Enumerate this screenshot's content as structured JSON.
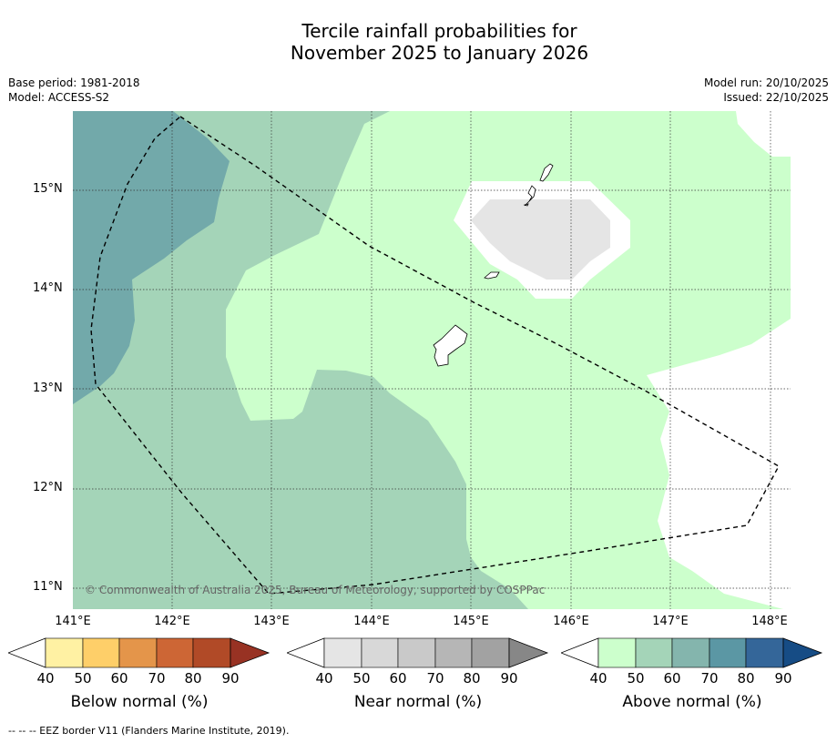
{
  "title_line1": "Tercile rainfall probabilities for",
  "title_line2": "November 2025 to January 2026",
  "meta_left": {
    "base_period": "Base period: 1981-2018",
    "model": "Model: ACCESS-S2"
  },
  "meta_right": {
    "model_run": "Model run: 20/10/2025",
    "issued": "Issued: 22/10/2025"
  },
  "axes": {
    "lat_labels": [
      "15°N",
      "14°N",
      "13°N",
      "12°N",
      "11°N"
    ],
    "lon_labels": [
      "141°E",
      "142°E",
      "143°E",
      "144°E",
      "145°E",
      "146°E",
      "147°E",
      "148°E"
    ]
  },
  "credit": "© Commonwealth of Australia 2025, Bureau of Meteorology, supported by COSPPac",
  "colorbars": [
    {
      "title": "Below normal (%)",
      "ticks": [
        "40",
        "50",
        "60",
        "70",
        "80",
        "90"
      ],
      "colors": [
        "#fff1a3",
        "#fecf69",
        "#e4954a",
        "#cd6635",
        "#b14a27",
        "#983223"
      ]
    },
    {
      "title": "Near normal (%)",
      "ticks": [
        "40",
        "50",
        "60",
        "70",
        "80",
        "90"
      ],
      "colors": [
        "#e5e5e5",
        "#d8d8d8",
        "#c9c9c9",
        "#b6b6b6",
        "#a2a2a2",
        "#878787"
      ]
    },
    {
      "title": "Above normal (%)",
      "ticks": [
        "40",
        "50",
        "60",
        "70",
        "80",
        "90"
      ],
      "colors": [
        "#ccffcc",
        "#a4d4b8",
        "#84b5ad",
        "#5b97a4",
        "#346699",
        "#164c85"
      ]
    }
  ],
  "footnote": "--  --  -- EEZ border V11 (Flanders Marine Institute, 2019)."
}
